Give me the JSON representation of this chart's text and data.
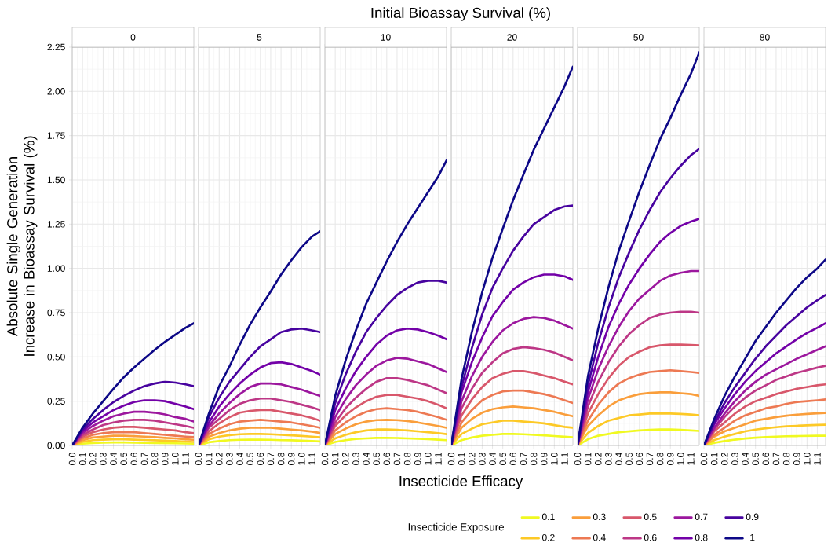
{
  "chart_data": [
    {
      "type": "line",
      "subtitle": "0",
      "ylabel": "Absolute Single Generation Increase in Bioassay Survival (%)",
      "legend_title": "Insecticide Exposure",
      "legend": "bottom",
      "grid": true,
      "xlim": [
        0,
        1.18
      ],
      "ylim": [
        0,
        2.25
      ],
      "xticks": [
        {
          "value": 0,
          "label": "0.0"
        },
        {
          "value": 0.1,
          "label": "0.1"
        },
        {
          "value": 0.2,
          "label": "0.2"
        },
        {
          "value": 0.3,
          "label": "0.3"
        },
        {
          "value": 0.4,
          "label": "0.4"
        },
        {
          "value": 0.5,
          "label": "0.5"
        },
        {
          "value": 0.6,
          "label": "0.6"
        },
        {
          "value": 0.7,
          "label": "0.7"
        },
        {
          "value": 0.8,
          "label": "0.8"
        },
        {
          "value": 0.9,
          "label": "0.9"
        },
        {
          "value": 1.0,
          "label": "1.0"
        },
        {
          "value": 1.1,
          "label": "1.1"
        }
      ],
      "yticks": [
        {
          "value": 0,
          "label": "0.00"
        },
        {
          "value": 0.25,
          "label": "0.25"
        },
        {
          "value": 0.5,
          "label": "0.50"
        },
        {
          "value": 0.75,
          "label": "0.75"
        },
        {
          "value": 1.0,
          "label": "1.00"
        },
        {
          "value": 1.25,
          "label": "1.25"
        },
        {
          "value": 1.5,
          "label": "1.50"
        },
        {
          "value": 1.75,
          "label": "1.75"
        },
        {
          "value": 2.0,
          "label": "2.00"
        },
        {
          "value": 2.25,
          "label": "2.25"
        }
      ],
      "x": [
        0,
        0.1,
        0.2,
        0.3,
        0.4,
        0.5,
        0.6,
        0.7,
        0.8,
        0.9,
        1.0,
        1.1,
        1.18
      ],
      "series": [
        {
          "name": "0.1",
          "color": "#f0f921",
          "values": [
            0,
            0.01,
            0.014,
            0.016,
            0.017,
            0.017,
            0.016,
            0.015,
            0.014,
            0.013,
            0.012,
            0.011,
            0.01
          ]
        },
        {
          "name": "0.2",
          "color": "#fdc926",
          "values": [
            0,
            0.02,
            0.03,
            0.033,
            0.035,
            0.035,
            0.033,
            0.031,
            0.029,
            0.027,
            0.025,
            0.022,
            0.02
          ]
        },
        {
          "name": "0.3",
          "color": "#fa9e3b",
          "values": [
            0,
            0.03,
            0.045,
            0.05,
            0.055,
            0.055,
            0.053,
            0.05,
            0.047,
            0.043,
            0.04,
            0.035,
            0.032
          ]
        },
        {
          "name": "0.4",
          "color": "#ed7953",
          "values": [
            0,
            0.04,
            0.06,
            0.07,
            0.075,
            0.075,
            0.075,
            0.07,
            0.065,
            0.06,
            0.055,
            0.05,
            0.047
          ]
        },
        {
          "name": "0.5",
          "color": "#d8576b",
          "values": [
            0,
            0.05,
            0.075,
            0.09,
            0.1,
            0.105,
            0.105,
            0.1,
            0.095,
            0.09,
            0.085,
            0.075,
            0.07
          ]
        },
        {
          "name": "0.6",
          "color": "#bd3786",
          "values": [
            0,
            0.06,
            0.09,
            0.115,
            0.13,
            0.14,
            0.145,
            0.145,
            0.14,
            0.13,
            0.12,
            0.11,
            0.1
          ]
        },
        {
          "name": "0.7",
          "color": "#9c179e",
          "values": [
            0,
            0.07,
            0.11,
            0.14,
            0.165,
            0.18,
            0.19,
            0.19,
            0.185,
            0.175,
            0.16,
            0.15,
            0.135
          ]
        },
        {
          "name": "0.8",
          "color": "#7301a8",
          "values": [
            0,
            0.08,
            0.13,
            0.165,
            0.2,
            0.225,
            0.245,
            0.255,
            0.255,
            0.25,
            0.235,
            0.22,
            0.205
          ]
        },
        {
          "name": "0.9",
          "color": "#47039f",
          "values": [
            0,
            0.09,
            0.15,
            0.2,
            0.245,
            0.28,
            0.31,
            0.335,
            0.35,
            0.36,
            0.355,
            0.345,
            0.335
          ]
        },
        {
          "name": "1",
          "color": "#0d0887",
          "values": [
            0,
            0.1,
            0.18,
            0.25,
            0.32,
            0.385,
            0.44,
            0.49,
            0.54,
            0.585,
            0.625,
            0.665,
            0.69
          ]
        }
      ]
    },
    {
      "type": "line",
      "subtitle": "5",
      "grid": true,
      "tick_labels": "x",
      "xlim": [
        0,
        1.18
      ],
      "ylim": [
        0,
        2.25
      ],
      "xticks": [
        {
          "value": 0,
          "label": "0.0"
        },
        {
          "value": 0.1,
          "label": "0.1"
        },
        {
          "value": 0.2,
          "label": "0.2"
        },
        {
          "value": 0.3,
          "label": "0.3"
        },
        {
          "value": 0.4,
          "label": "0.4"
        },
        {
          "value": 0.5,
          "label": "0.5"
        },
        {
          "value": 0.6,
          "label": "0.6"
        },
        {
          "value": 0.7,
          "label": "0.7"
        },
        {
          "value": 0.8,
          "label": "0.8"
        },
        {
          "value": 0.9,
          "label": "0.9"
        },
        {
          "value": 1.0,
          "label": "1.0"
        },
        {
          "value": 1.1,
          "label": "1.1"
        }
      ],
      "yticks": [
        {
          "value": 0,
          "label": null
        },
        {
          "value": 0.25,
          "label": null
        },
        {
          "value": 0.5,
          "label": null
        },
        {
          "value": 0.75,
          "label": null
        },
        {
          "value": 1.0,
          "label": null
        },
        {
          "value": 1.25,
          "label": null
        },
        {
          "value": 1.5,
          "label": null
        },
        {
          "value": 1.75,
          "label": null
        },
        {
          "value": 2.0,
          "label": null
        },
        {
          "value": 2.25,
          "label": null
        }
      ],
      "x": [
        0,
        0.1,
        0.2,
        0.3,
        0.4,
        0.5,
        0.6,
        0.7,
        0.8,
        0.9,
        1.0,
        1.1,
        1.18
      ],
      "series": [
        {
          "color": "#f0f921",
          "values": [
            0,
            0.018,
            0.025,
            0.03,
            0.032,
            0.033,
            0.033,
            0.032,
            0.03,
            0.029,
            0.027,
            0.025,
            0.023
          ]
        },
        {
          "color": "#fdc926",
          "values": [
            0,
            0.035,
            0.05,
            0.058,
            0.063,
            0.065,
            0.065,
            0.063,
            0.06,
            0.057,
            0.054,
            0.05,
            0.046
          ]
        },
        {
          "color": "#fa9e3b",
          "values": [
            0,
            0.05,
            0.07,
            0.085,
            0.095,
            0.1,
            0.1,
            0.1,
            0.095,
            0.09,
            0.085,
            0.078,
            0.07
          ]
        },
        {
          "color": "#ed7953",
          "values": [
            0,
            0.065,
            0.095,
            0.12,
            0.135,
            0.14,
            0.145,
            0.14,
            0.135,
            0.13,
            0.12,
            0.11,
            0.1
          ]
        },
        {
          "color": "#d8576b",
          "values": [
            0,
            0.08,
            0.125,
            0.16,
            0.185,
            0.195,
            0.2,
            0.2,
            0.19,
            0.18,
            0.17,
            0.155,
            0.14
          ]
        },
        {
          "color": "#bd3786",
          "values": [
            0,
            0.1,
            0.15,
            0.2,
            0.235,
            0.255,
            0.265,
            0.265,
            0.255,
            0.245,
            0.23,
            0.215,
            0.2
          ]
        },
        {
          "color": "#9c179e",
          "values": [
            0,
            0.11,
            0.18,
            0.24,
            0.29,
            0.33,
            0.35,
            0.35,
            0.345,
            0.33,
            0.315,
            0.295,
            0.28
          ]
        },
        {
          "color": "#7301a8",
          "values": [
            0,
            0.13,
            0.22,
            0.29,
            0.35,
            0.4,
            0.44,
            0.465,
            0.47,
            0.46,
            0.44,
            0.42,
            0.4
          ]
        },
        {
          "color": "#47039f",
          "values": [
            0,
            0.16,
            0.27,
            0.36,
            0.43,
            0.5,
            0.56,
            0.6,
            0.64,
            0.655,
            0.66,
            0.65,
            0.64
          ]
        },
        {
          "color": "#0d0887",
          "values": [
            0,
            0.18,
            0.335,
            0.446,
            0.57,
            0.683,
            0.78,
            0.87,
            0.965,
            1.046,
            1.12,
            1.18,
            1.21
          ]
        }
      ]
    },
    {
      "type": "line",
      "subtitle": "10",
      "grid": true,
      "tick_labels": "x",
      "xlim": [
        0,
        1.18
      ],
      "ylim": [
        0,
        2.25
      ],
      "xticks": [
        {
          "value": 0,
          "label": "0.0"
        },
        {
          "value": 0.1,
          "label": "0.1"
        },
        {
          "value": 0.2,
          "label": "0.2"
        },
        {
          "value": 0.3,
          "label": "0.3"
        },
        {
          "value": 0.4,
          "label": "0.4"
        },
        {
          "value": 0.5,
          "label": "0.5"
        },
        {
          "value": 0.6,
          "label": "0.6"
        },
        {
          "value": 0.7,
          "label": "0.7"
        },
        {
          "value": 0.8,
          "label": "0.8"
        },
        {
          "value": 0.9,
          "label": "0.9"
        },
        {
          "value": 1.0,
          "label": "1.0"
        },
        {
          "value": 1.1,
          "label": "1.1"
        }
      ],
      "yticks": [
        {
          "value": 0,
          "label": null
        },
        {
          "value": 0.25,
          "label": null
        },
        {
          "value": 0.5,
          "label": null
        },
        {
          "value": 0.75,
          "label": null
        },
        {
          "value": 1.0,
          "label": null
        },
        {
          "value": 1.25,
          "label": null
        },
        {
          "value": 1.5,
          "label": null
        },
        {
          "value": 1.75,
          "label": null
        },
        {
          "value": 2.0,
          "label": null
        },
        {
          "value": 2.25,
          "label": null
        }
      ],
      "x": [
        0,
        0.1,
        0.2,
        0.3,
        0.4,
        0.5,
        0.6,
        0.7,
        0.8,
        0.9,
        1.0,
        1.1,
        1.18
      ],
      "series": [
        {
          "color": "#f0f921",
          "values": [
            0,
            0.02,
            0.03,
            0.037,
            0.04,
            0.043,
            0.043,
            0.042,
            0.04,
            0.038,
            0.036,
            0.033,
            0.03
          ]
        },
        {
          "color": "#fdc926",
          "values": [
            0,
            0.04,
            0.06,
            0.075,
            0.085,
            0.09,
            0.09,
            0.088,
            0.085,
            0.08,
            0.075,
            0.07,
            0.064
          ]
        },
        {
          "color": "#fa9e3b",
          "values": [
            0,
            0.065,
            0.095,
            0.12,
            0.135,
            0.143,
            0.145,
            0.143,
            0.138,
            0.13,
            0.12,
            0.11,
            0.1
          ]
        },
        {
          "color": "#ed7953",
          "values": [
            0,
            0.085,
            0.13,
            0.165,
            0.19,
            0.205,
            0.21,
            0.205,
            0.2,
            0.19,
            0.175,
            0.16,
            0.145
          ]
        },
        {
          "color": "#d8576b",
          "values": [
            0,
            0.11,
            0.17,
            0.215,
            0.25,
            0.275,
            0.285,
            0.285,
            0.275,
            0.265,
            0.25,
            0.23,
            0.21
          ]
        },
        {
          "color": "#bd3786",
          "values": [
            0,
            0.13,
            0.21,
            0.27,
            0.32,
            0.36,
            0.38,
            0.38,
            0.37,
            0.355,
            0.34,
            0.315,
            0.295
          ]
        },
        {
          "color": "#9c179e",
          "values": [
            0,
            0.16,
            0.26,
            0.34,
            0.4,
            0.45,
            0.48,
            0.495,
            0.49,
            0.475,
            0.46,
            0.435,
            0.415
          ]
        },
        {
          "color": "#7301a8",
          "values": [
            0,
            0.2,
            0.32,
            0.42,
            0.5,
            0.57,
            0.62,
            0.65,
            0.66,
            0.655,
            0.64,
            0.62,
            0.6
          ]
        },
        {
          "color": "#47039f",
          "values": [
            0,
            0.24,
            0.4,
            0.53,
            0.64,
            0.72,
            0.79,
            0.85,
            0.89,
            0.92,
            0.93,
            0.93,
            0.92
          ]
        },
        {
          "color": "#0d0887",
          "values": [
            0,
            0.28,
            0.48,
            0.65,
            0.8,
            0.92,
            1.04,
            1.15,
            1.25,
            1.34,
            1.43,
            1.52,
            1.61
          ]
        }
      ]
    },
    {
      "type": "line",
      "title": "Initial Bioassay Survival (%)",
      "xlabel": "Insecticide Efficacy",
      "subtitle": "20",
      "grid": true,
      "tick_labels": "x",
      "xlim": [
        0,
        1.18
      ],
      "ylim": [
        0,
        2.25
      ],
      "xticks": [
        {
          "value": 0,
          "label": "0.0"
        },
        {
          "value": 0.1,
          "label": "0.1"
        },
        {
          "value": 0.2,
          "label": "0.2"
        },
        {
          "value": 0.3,
          "label": "0.3"
        },
        {
          "value": 0.4,
          "label": "0.4"
        },
        {
          "value": 0.5,
          "label": "0.5"
        },
        {
          "value": 0.6,
          "label": "0.6"
        },
        {
          "value": 0.7,
          "label": "0.7"
        },
        {
          "value": 0.8,
          "label": "0.8"
        },
        {
          "value": 0.9,
          "label": "0.9"
        },
        {
          "value": 1.0,
          "label": "1.0"
        },
        {
          "value": 1.1,
          "label": "1.1"
        }
      ],
      "yticks": [
        {
          "value": 0,
          "label": null
        },
        {
          "value": 0.25,
          "label": null
        },
        {
          "value": 0.5,
          "label": null
        },
        {
          "value": 0.75,
          "label": null
        },
        {
          "value": 1.0,
          "label": null
        },
        {
          "value": 1.25,
          "label": null
        },
        {
          "value": 1.5,
          "label": null
        },
        {
          "value": 1.75,
          "label": null
        },
        {
          "value": 2.0,
          "label": null
        },
        {
          "value": 2.25,
          "label": null
        }
      ],
      "x": [
        0,
        0.1,
        0.2,
        0.3,
        0.4,
        0.5,
        0.6,
        0.7,
        0.8,
        0.9,
        1.0,
        1.1,
        1.18
      ],
      "series": [
        {
          "color": "#f0f921",
          "values": [
            0,
            0.03,
            0.045,
            0.055,
            0.06,
            0.065,
            0.065,
            0.063,
            0.06,
            0.057,
            0.053,
            0.049,
            0.046
          ]
        },
        {
          "color": "#fdc926",
          "values": [
            0,
            0.065,
            0.095,
            0.12,
            0.13,
            0.14,
            0.14,
            0.135,
            0.13,
            0.125,
            0.115,
            0.105,
            0.1
          ]
        },
        {
          "color": "#fa9e3b",
          "values": [
            0,
            0.1,
            0.15,
            0.185,
            0.205,
            0.215,
            0.22,
            0.215,
            0.21,
            0.2,
            0.19,
            0.175,
            0.165
          ]
        },
        {
          "color": "#ed7953",
          "values": [
            0,
            0.13,
            0.2,
            0.255,
            0.285,
            0.305,
            0.31,
            0.31,
            0.3,
            0.29,
            0.275,
            0.255,
            0.24
          ]
        },
        {
          "color": "#d8576b",
          "values": [
            0,
            0.17,
            0.26,
            0.33,
            0.38,
            0.405,
            0.42,
            0.42,
            0.41,
            0.395,
            0.38,
            0.36,
            0.345
          ]
        },
        {
          "color": "#bd3786",
          "values": [
            0,
            0.21,
            0.32,
            0.41,
            0.47,
            0.52,
            0.545,
            0.555,
            0.55,
            0.54,
            0.525,
            0.5,
            0.48
          ]
        },
        {
          "color": "#9c179e",
          "values": [
            0,
            0.25,
            0.39,
            0.5,
            0.585,
            0.65,
            0.69,
            0.715,
            0.725,
            0.72,
            0.705,
            0.68,
            0.66
          ]
        },
        {
          "color": "#7301a8",
          "values": [
            0,
            0.3,
            0.47,
            0.61,
            0.73,
            0.81,
            0.88,
            0.92,
            0.95,
            0.965,
            0.965,
            0.955,
            0.935
          ]
        },
        {
          "color": "#47039f",
          "values": [
            0,
            0.33,
            0.55,
            0.74,
            0.89,
            1.0,
            1.1,
            1.18,
            1.25,
            1.29,
            1.33,
            1.35,
            1.355
          ]
        },
        {
          "color": "#0d0887",
          "values": [
            0,
            0.375,
            0.64,
            0.865,
            1.06,
            1.225,
            1.386,
            1.53,
            1.67,
            1.79,
            1.91,
            2.03,
            2.14
          ]
        }
      ]
    },
    {
      "type": "line",
      "subtitle": "50",
      "grid": true,
      "tick_labels": "x",
      "xlim": [
        0,
        1.18
      ],
      "ylim": [
        0,
        2.25
      ],
      "xticks": [
        {
          "value": 0,
          "label": "0.0"
        },
        {
          "value": 0.1,
          "label": "0.1"
        },
        {
          "value": 0.2,
          "label": "0.2"
        },
        {
          "value": 0.3,
          "label": "0.3"
        },
        {
          "value": 0.4,
          "label": "0.4"
        },
        {
          "value": 0.5,
          "label": "0.5"
        },
        {
          "value": 0.6,
          "label": "0.6"
        },
        {
          "value": 0.7,
          "label": "0.7"
        },
        {
          "value": 0.8,
          "label": "0.8"
        },
        {
          "value": 0.9,
          "label": "0.9"
        },
        {
          "value": 1.0,
          "label": "1.0"
        },
        {
          "value": 1.1,
          "label": "1.1"
        }
      ],
      "yticks": [
        {
          "value": 0,
          "label": null
        },
        {
          "value": 0.25,
          "label": null
        },
        {
          "value": 0.5,
          "label": null
        },
        {
          "value": 0.75,
          "label": null
        },
        {
          "value": 1.0,
          "label": null
        },
        {
          "value": 1.25,
          "label": null
        },
        {
          "value": 1.5,
          "label": null
        },
        {
          "value": 1.75,
          "label": null
        },
        {
          "value": 2.0,
          "label": null
        },
        {
          "value": 2.25,
          "label": null
        }
      ],
      "x": [
        0,
        0.1,
        0.2,
        0.3,
        0.4,
        0.5,
        0.6,
        0.7,
        0.8,
        0.9,
        1.0,
        1.1,
        1.18
      ],
      "series": [
        {
          "color": "#f0f921",
          "values": [
            0,
            0.035,
            0.055,
            0.065,
            0.075,
            0.08,
            0.085,
            0.088,
            0.09,
            0.09,
            0.088,
            0.085,
            0.082
          ]
        },
        {
          "color": "#fdc926",
          "values": [
            0,
            0.07,
            0.11,
            0.14,
            0.155,
            0.17,
            0.175,
            0.18,
            0.18,
            0.18,
            0.178,
            0.175,
            0.17
          ]
        },
        {
          "color": "#fa9e3b",
          "values": [
            0,
            0.11,
            0.17,
            0.22,
            0.255,
            0.275,
            0.29,
            0.297,
            0.3,
            0.3,
            0.295,
            0.29,
            0.28
          ]
        },
        {
          "color": "#ed7953",
          "values": [
            0,
            0.14,
            0.23,
            0.3,
            0.35,
            0.38,
            0.4,
            0.415,
            0.42,
            0.425,
            0.42,
            0.415,
            0.41
          ]
        },
        {
          "color": "#d8576b",
          "values": [
            0,
            0.18,
            0.29,
            0.38,
            0.45,
            0.5,
            0.53,
            0.555,
            0.565,
            0.57,
            0.57,
            0.568,
            0.565
          ]
        },
        {
          "color": "#bd3786",
          "values": [
            0,
            0.22,
            0.36,
            0.47,
            0.56,
            0.63,
            0.68,
            0.72,
            0.74,
            0.75,
            0.755,
            0.755,
            0.75
          ]
        },
        {
          "color": "#9c179e",
          "values": [
            0,
            0.26,
            0.43,
            0.56,
            0.67,
            0.76,
            0.83,
            0.88,
            0.93,
            0.96,
            0.975,
            0.985,
            0.985
          ]
        },
        {
          "color": "#7301a8",
          "values": [
            0,
            0.3,
            0.5,
            0.67,
            0.8,
            0.91,
            1.0,
            1.08,
            1.15,
            1.2,
            1.24,
            1.265,
            1.28
          ]
        },
        {
          "color": "#47039f",
          "values": [
            0,
            0.34,
            0.58,
            0.78,
            0.95,
            1.09,
            1.22,
            1.33,
            1.43,
            1.51,
            1.58,
            1.64,
            1.675
          ]
        },
        {
          "color": "#0d0887",
          "values": [
            0,
            0.39,
            0.66,
            0.895,
            1.1,
            1.27,
            1.435,
            1.585,
            1.73,
            1.85,
            1.98,
            2.1,
            2.22
          ]
        }
      ]
    },
    {
      "type": "line",
      "subtitle": "80",
      "grid": true,
      "tick_labels": "x",
      "xlim": [
        0,
        1.18
      ],
      "ylim": [
        0,
        2.25
      ],
      "xticks": [
        {
          "value": 0,
          "label": "0.0"
        },
        {
          "value": 0.1,
          "label": "0.1"
        },
        {
          "value": 0.2,
          "label": "0.2"
        },
        {
          "value": 0.3,
          "label": "0.3"
        },
        {
          "value": 0.4,
          "label": "0.4"
        },
        {
          "value": 0.5,
          "label": "0.5"
        },
        {
          "value": 0.6,
          "label": "0.6"
        },
        {
          "value": 0.7,
          "label": "0.7"
        },
        {
          "value": 0.8,
          "label": "0.8"
        },
        {
          "value": 0.9,
          "label": "0.9"
        },
        {
          "value": 1.0,
          "label": "1.0"
        },
        {
          "value": 1.1,
          "label": "1.1"
        }
      ],
      "yticks": [
        {
          "value": 0,
          "label": null
        },
        {
          "value": 0.25,
          "label": null
        },
        {
          "value": 0.5,
          "label": null
        },
        {
          "value": 0.75,
          "label": null
        },
        {
          "value": 1.0,
          "label": null
        },
        {
          "value": 1.25,
          "label": null
        },
        {
          "value": 1.5,
          "label": null
        },
        {
          "value": 1.75,
          "label": null
        },
        {
          "value": 2.0,
          "label": null
        },
        {
          "value": 2.25,
          "label": null
        }
      ],
      "x": [
        0,
        0.1,
        0.2,
        0.3,
        0.4,
        0.5,
        0.6,
        0.7,
        0.8,
        0.9,
        1.0,
        1.1,
        1.18
      ],
      "series": [
        {
          "color": "#f0f921",
          "values": [
            0,
            0.015,
            0.025,
            0.033,
            0.039,
            0.044,
            0.047,
            0.05,
            0.052,
            0.053,
            0.054,
            0.055,
            0.055
          ]
        },
        {
          "color": "#fdc926",
          "values": [
            0,
            0.03,
            0.05,
            0.065,
            0.08,
            0.09,
            0.097,
            0.103,
            0.108,
            0.111,
            0.114,
            0.116,
            0.117
          ]
        },
        {
          "color": "#fa9e3b",
          "values": [
            0,
            0.05,
            0.08,
            0.1,
            0.12,
            0.14,
            0.15,
            0.16,
            0.168,
            0.174,
            0.178,
            0.181,
            0.183
          ]
        },
        {
          "color": "#ed7953",
          "values": [
            0,
            0.06,
            0.1,
            0.14,
            0.17,
            0.19,
            0.21,
            0.22,
            0.235,
            0.245,
            0.25,
            0.255,
            0.26
          ]
        },
        {
          "color": "#d8576b",
          "values": [
            0,
            0.08,
            0.13,
            0.18,
            0.22,
            0.25,
            0.27,
            0.29,
            0.305,
            0.32,
            0.33,
            0.34,
            0.345
          ]
        },
        {
          "color": "#bd3786",
          "values": [
            0,
            0.09,
            0.16,
            0.22,
            0.27,
            0.31,
            0.34,
            0.37,
            0.39,
            0.41,
            0.425,
            0.44,
            0.45
          ]
        },
        {
          "color": "#9c179e",
          "values": [
            0,
            0.1,
            0.18,
            0.25,
            0.31,
            0.36,
            0.4,
            0.43,
            0.46,
            0.49,
            0.515,
            0.54,
            0.56
          ]
        },
        {
          "color": "#7301a8",
          "values": [
            0,
            0.12,
            0.21,
            0.29,
            0.36,
            0.42,
            0.47,
            0.52,
            0.56,
            0.6,
            0.635,
            0.665,
            0.69
          ]
        },
        {
          "color": "#47039f",
          "values": [
            0,
            0.13,
            0.24,
            0.33,
            0.41,
            0.49,
            0.56,
            0.62,
            0.68,
            0.73,
            0.78,
            0.82,
            0.85
          ]
        },
        {
          "color": "#0d0887",
          "values": [
            0,
            0.15,
            0.28,
            0.39,
            0.49,
            0.59,
            0.67,
            0.75,
            0.82,
            0.89,
            0.95,
            1.0,
            1.05
          ]
        }
      ]
    }
  ]
}
